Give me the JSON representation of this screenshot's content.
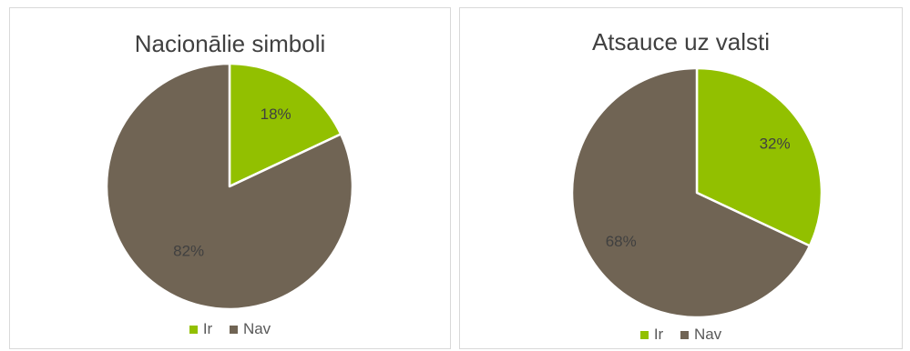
{
  "colors": {
    "ir": "#92c000",
    "nav": "#706454"
  },
  "chart_data": [
    {
      "type": "pie",
      "title": "Nacionālie simboli",
      "categories": [
        "Ir",
        "Nav"
      ],
      "values": [
        18,
        82
      ],
      "labels": [
        "18%",
        "82%"
      ],
      "start_angle": "12 o'clock, clockwise",
      "legend": "bottom"
    },
    {
      "type": "pie",
      "title": "Atsauce uz valsti",
      "categories": [
        "Ir",
        "Nav"
      ],
      "values": [
        32,
        68
      ],
      "labels": [
        "32%",
        "68%"
      ],
      "start_angle": "12 o'clock, clockwise",
      "legend": "bottom"
    }
  ]
}
